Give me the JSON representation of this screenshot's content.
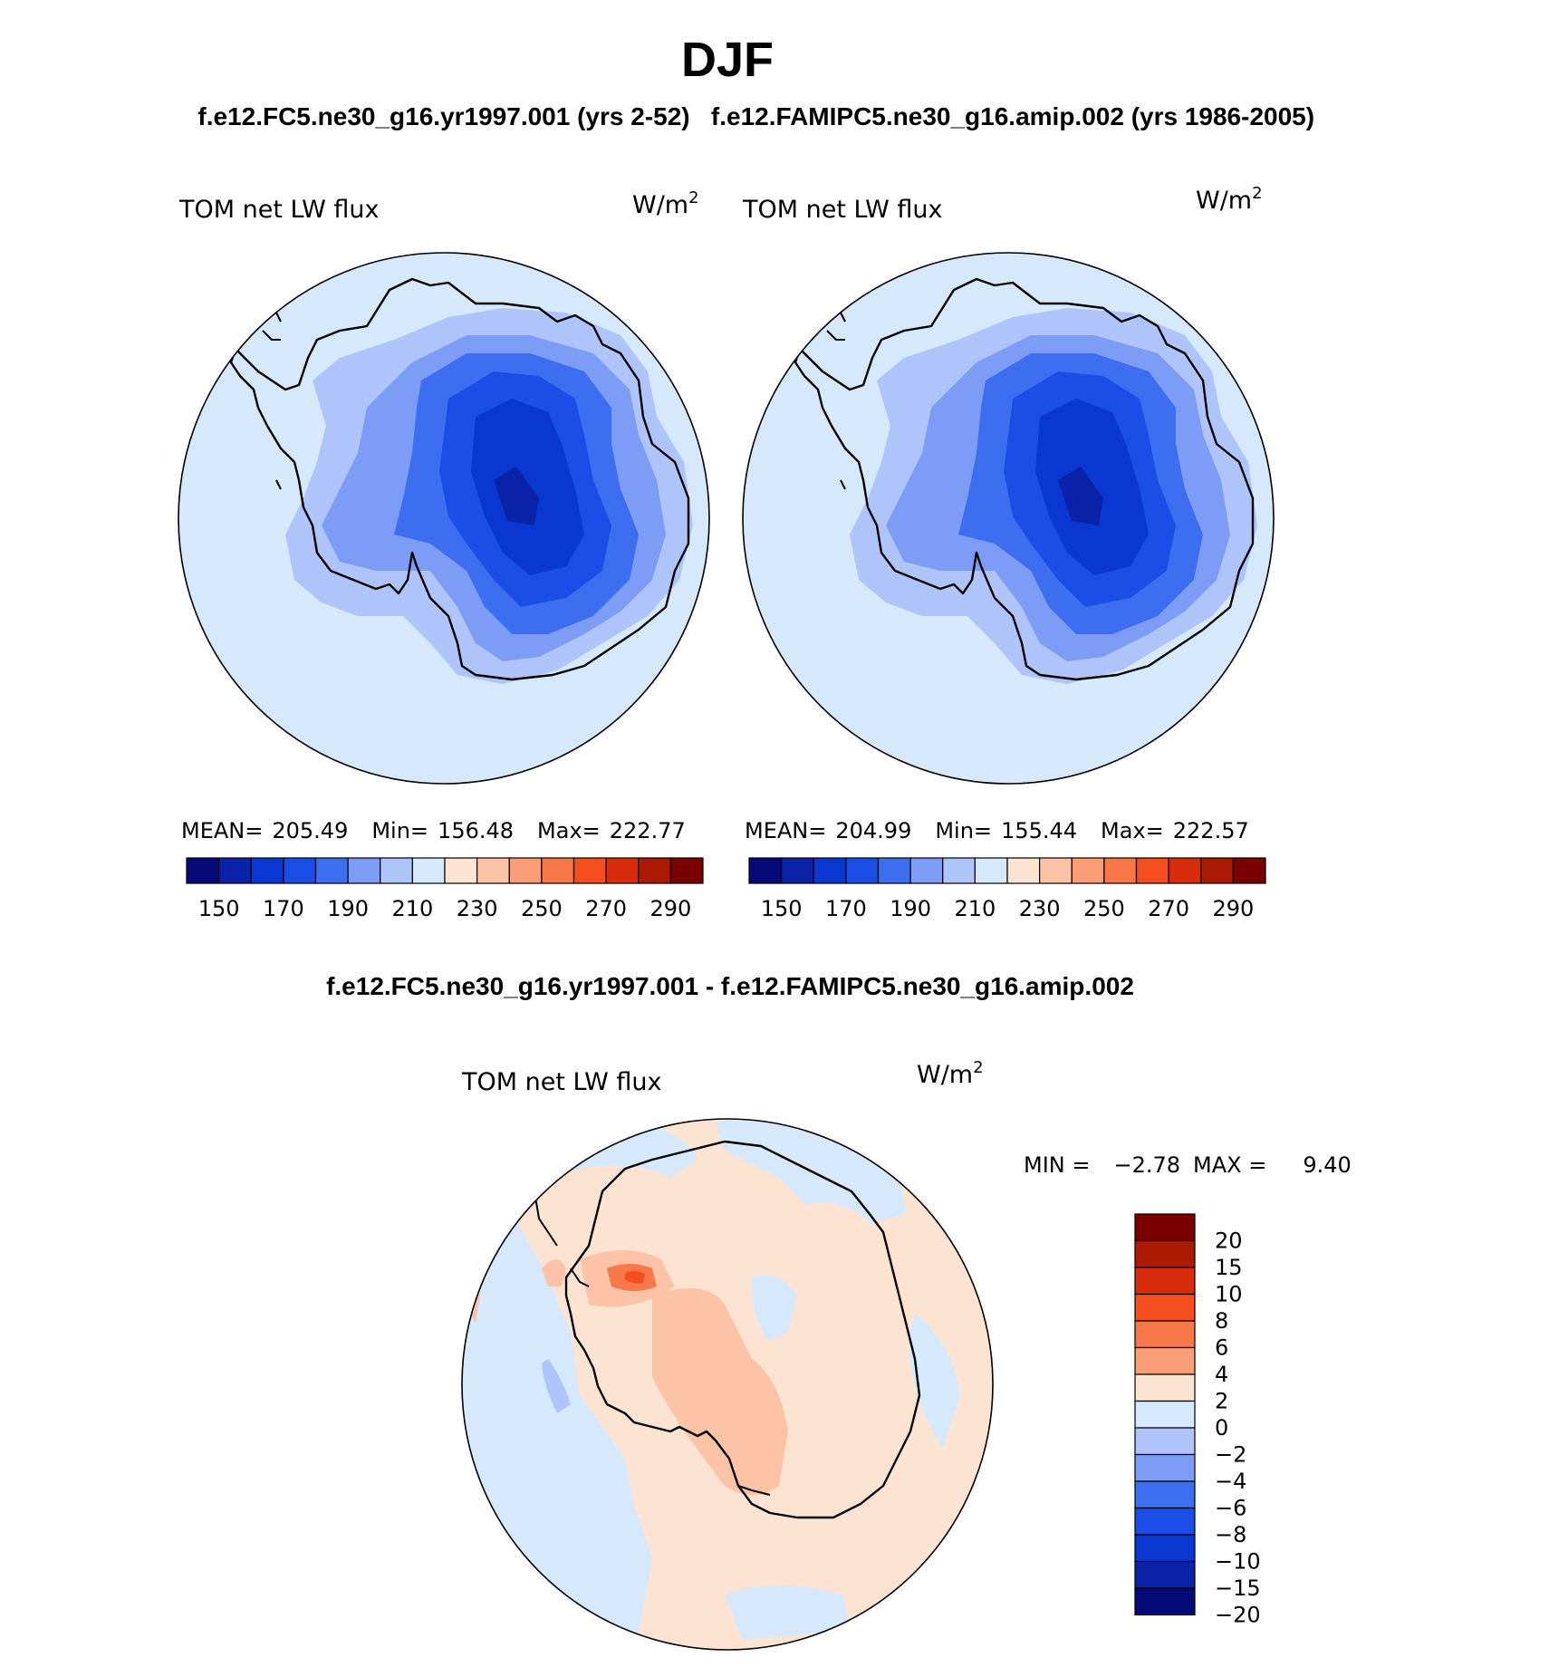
{
  "page_title": "DJF",
  "panels": [
    {
      "case": "f.e12.FC5.ne30_g16.yr1997.001 (yrs 2-52)",
      "variable": "TOM net LW flux",
      "units_main": "W/m",
      "units_exp": "2",
      "stats": {
        "mean_label": "MEAN=",
        "mean": "205.49",
        "min_label": "Min=",
        "min": "156.48",
        "max_label": "Max=",
        "max": "222.77"
      }
    },
    {
      "case": "f.e12.FAMIPC5.ne30_g16.amip.002 (yrs 1986-2005)",
      "variable": "TOM net LW flux",
      "units_main": "W/m",
      "units_exp": "2",
      "stats": {
        "mean_label": "MEAN=",
        "mean": "204.99",
        "min_label": "Min=",
        "min": "155.44",
        "max_label": "Max=",
        "max": "222.57"
      }
    }
  ],
  "colorbar_main": {
    "colors": [
      "#050a78",
      "#0a22a8",
      "#0a36d2",
      "#1a4ee6",
      "#3e6ef0",
      "#7c9cf6",
      "#aec4fa",
      "#d6e8fc",
      "#fde4d2",
      "#fcc3a6",
      "#fb9e78",
      "#f8784a",
      "#f44d1e",
      "#d82c0c",
      "#ac1a06",
      "#7a0000"
    ],
    "tick_labels": [
      "150",
      "170",
      "190",
      "210",
      "230",
      "250",
      "270",
      "290"
    ]
  },
  "difference": {
    "title": "f.e12.FC5.ne30_g16.yr1997.001 - f.e12.FAMIPC5.ne30_g16.amip.002",
    "variable": "TOM net LW flux",
    "units_main": "W/m",
    "units_exp": "2",
    "min_label": "MIN =",
    "min": "−2.78",
    "max_label": "MAX =",
    "max": "9.40"
  },
  "colorbar_diff": {
    "colors": [
      "#7a0000",
      "#ac1a06",
      "#d82c0c",
      "#f44d1e",
      "#f8784a",
      "#fb9e78",
      "#fde4d2",
      "#d6e8fc",
      "#aec4fa",
      "#7c9cf6",
      "#3e6ef0",
      "#1a4ee6",
      "#0a36d2",
      "#0a22a8",
      "#050a78"
    ],
    "tick_labels": [
      "20",
      "15",
      "10",
      "8",
      "6",
      "4",
      "2",
      "0",
      "−2",
      "−4",
      "−6",
      "−8",
      "−10",
      "−15",
      "−20"
    ]
  }
}
